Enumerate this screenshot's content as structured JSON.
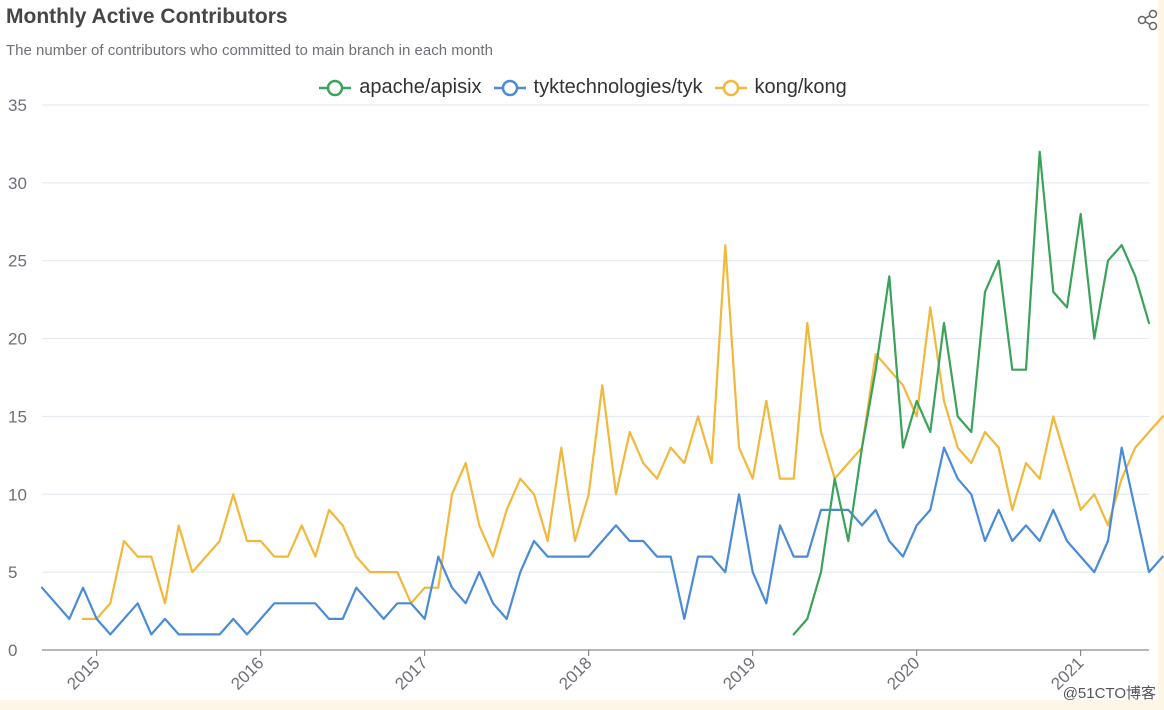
{
  "chart_data": {
    "type": "line",
    "title": "Monthly Active Contributors",
    "subtitle": "The number of contributors who committed to main branch in each month",
    "xlabel": "",
    "ylabel": "",
    "ylim": [
      0,
      35
    ],
    "yticks": [
      0,
      5,
      10,
      15,
      20,
      25,
      30,
      35
    ],
    "x_tick_labels": [
      "2015",
      "2016",
      "2017",
      "2018",
      "2019",
      "2020",
      "2021"
    ],
    "x_start": "2014-09",
    "x_end": "2021-06",
    "grid": "horizontal",
    "legend_position": "top-center",
    "series": [
      {
        "name": "apache/apisix",
        "color": "#3ba25a",
        "start": "2019-04",
        "values": [
          1,
          2,
          5,
          11,
          7,
          13,
          18,
          24,
          13,
          16,
          14,
          21,
          15,
          14,
          23,
          25,
          18,
          18,
          32,
          23,
          22,
          28,
          20,
          25,
          26,
          24,
          21
        ]
      },
      {
        "name": "tyktechnologies/tyk",
        "color": "#4a8bd8",
        "start": "2014-09",
        "values": [
          4,
          3,
          2,
          4,
          2,
          1,
          2,
          3,
          1,
          2,
          1,
          1,
          1,
          1,
          2,
          1,
          2,
          3,
          3,
          3,
          3,
          2,
          2,
          4,
          3,
          2,
          3,
          3,
          2,
          6,
          4,
          3,
          5,
          3,
          2,
          5,
          7,
          6,
          6,
          6,
          6,
          7,
          8,
          7,
          7,
          6,
          6,
          2,
          6,
          6,
          5,
          10,
          5,
          3,
          8,
          6,
          6,
          9,
          9,
          9,
          8,
          9,
          7,
          6,
          8,
          9,
          13,
          11,
          10,
          7,
          9,
          7,
          8,
          7,
          9,
          7,
          6,
          5,
          7,
          13,
          9,
          5,
          6
        ]
      },
      {
        "name": "kong/kong",
        "color": "#f2b83b",
        "start": "2014-12",
        "values": [
          2,
          2,
          3,
          7,
          6,
          6,
          3,
          8,
          5,
          6,
          7,
          10,
          7,
          7,
          6,
          6,
          8,
          6,
          9,
          8,
          6,
          5,
          5,
          5,
          3,
          4,
          4,
          10,
          12,
          8,
          6,
          9,
          11,
          10,
          7,
          13,
          7,
          10,
          17,
          10,
          14,
          12,
          11,
          13,
          12,
          15,
          12,
          26,
          13,
          11,
          16,
          11,
          11,
          21,
          14,
          11,
          12,
          13,
          19,
          18,
          17,
          15,
          22,
          16,
          13,
          12,
          14,
          13,
          9,
          12,
          11,
          15,
          12,
          9,
          10,
          8,
          11,
          13,
          14,
          15
        ]
      }
    ]
  },
  "toolbar": {
    "share_icon": "share-icon"
  },
  "watermark": "@51CTO博客"
}
